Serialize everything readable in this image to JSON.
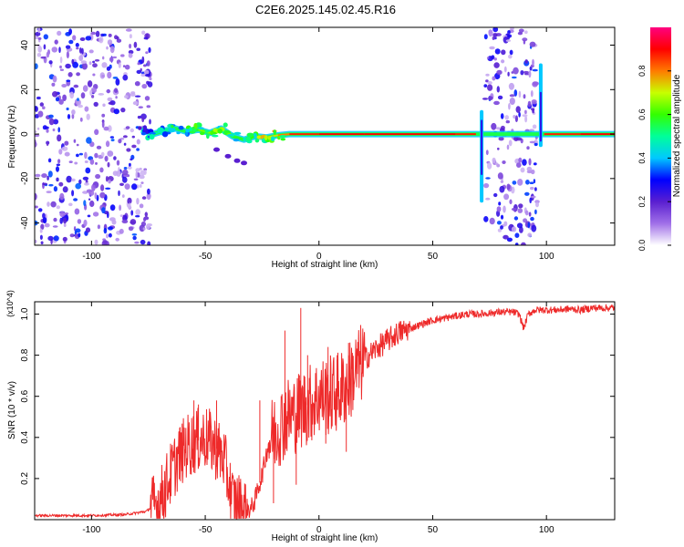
{
  "figure_title": "C2E6.2025.145.02.45.R16",
  "chart_data": [
    {
      "type": "heatmap",
      "xlabel": "Height of straight line (km)",
      "ylabel": "Frequency (Hz)",
      "xlim": [
        -125,
        130
      ],
      "ylim": [
        -50,
        48
      ],
      "x_ticks": [
        -100,
        -50,
        0,
        50,
        100
      ],
      "y_ticks": [
        -40,
        -20,
        0,
        20,
        40
      ],
      "grid": false,
      "colorbar": {
        "label": "Normalized spectral amplitude",
        "range": [
          0.0,
          1.0
        ],
        "ticks": [
          0.0,
          0.2,
          0.4,
          0.6,
          0.8
        ],
        "stops": [
          "#ffffff",
          "#a070e8",
          "#5a1fd0",
          "#0000ff",
          "#00c8ff",
          "#00ff9a",
          "#33ff00",
          "#c8ff00",
          "#ff7a00",
          "#ff0000",
          "#ff0080"
        ]
      },
      "noise_bands": [
        {
          "x": [
            -125,
            -74
          ],
          "f": [
            -50,
            48
          ]
        },
        {
          "x": [
            73,
            96
          ],
          "f": [
            -50,
            48
          ]
        }
      ],
      "signal_track": [
        {
          "x": -78,
          "f": 2.0,
          "a": 0.35
        },
        {
          "x": -73,
          "f": 0.0,
          "a": 0.45
        },
        {
          "x": -68,
          "f": 1.5,
          "a": 0.5
        },
        {
          "x": -63,
          "f": 2.5,
          "a": 0.55
        },
        {
          "x": -58,
          "f": 1.0,
          "a": 0.55
        },
        {
          "x": -53,
          "f": 2.0,
          "a": 0.6
        },
        {
          "x": -48,
          "f": 0.5,
          "a": 0.7
        },
        {
          "x": -43,
          "f": 2.5,
          "a": 0.65
        },
        {
          "x": -38,
          "f": -1.0,
          "a": 0.6
        },
        {
          "x": -33,
          "f": -2.5,
          "a": 0.55
        },
        {
          "x": -28,
          "f": -1.0,
          "a": 0.65
        },
        {
          "x": -23,
          "f": -1.5,
          "a": 0.7
        },
        {
          "x": -18,
          "f": -0.5,
          "a": 0.75
        },
        {
          "x": -13,
          "f": 0.0,
          "a": 0.85
        },
        {
          "x": 0,
          "f": 0.0,
          "a": 0.9
        },
        {
          "x": 20,
          "f": 0.0,
          "a": 0.9
        },
        {
          "x": 40,
          "f": 0.0,
          "a": 0.9
        },
        {
          "x": 60,
          "f": 0.0,
          "a": 0.9
        },
        {
          "x": 69,
          "f": 0.0,
          "a": 0.85
        },
        {
          "x": 99,
          "f": 0.0,
          "a": 0.85
        },
        {
          "x": 115,
          "f": 0.0,
          "a": 0.9
        },
        {
          "x": 130,
          "f": 0.0,
          "a": 0.9
        }
      ],
      "spurs": [
        {
          "x": 71.5,
          "f": [
            -30,
            10
          ]
        },
        {
          "x": 97.5,
          "f": [
            -5,
            31
          ]
        }
      ],
      "branch": [
        {
          "x": -45,
          "f": -7
        },
        {
          "x": -40,
          "f": -10
        },
        {
          "x": -36,
          "f": -12
        },
        {
          "x": -33,
          "f": -13
        }
      ]
    },
    {
      "type": "line",
      "xlabel": "Height of straight line (km)",
      "ylabel": "SNR (10 * v/v)",
      "y_multiplier": "(x10^4)",
      "xlim": [
        -125,
        130
      ],
      "ylim": [
        0,
        1.06
      ],
      "x_ticks": [
        -100,
        -50,
        0,
        50,
        100
      ],
      "y_ticks": [
        0.2,
        0.4,
        0.6,
        0.8,
        1.0
      ],
      "y_tick_labels": [
        "0.2",
        "0.4",
        "0.6",
        "0.8",
        "1.0"
      ],
      "grid": false,
      "series": [
        {
          "color": "#ee2a2a",
          "x": [
            -125,
            -100,
            -85,
            -76,
            -70,
            -66,
            -62,
            -58,
            -54,
            -50,
            -46,
            -42,
            -38,
            -34,
            -30,
            -28,
            -25,
            -22,
            -18,
            -14,
            -10,
            -6,
            -2,
            0,
            4,
            8,
            12,
            16,
            20,
            25,
            30,
            35,
            40,
            45,
            50,
            55,
            60,
            65,
            70,
            75,
            80,
            85,
            88,
            90,
            92,
            95,
            100,
            105,
            110,
            115,
            120,
            125,
            130
          ],
          "y": [
            0.02,
            0.02,
            0.025,
            0.04,
            0.09,
            0.2,
            0.3,
            0.36,
            0.38,
            0.4,
            0.36,
            0.3,
            0.1,
            0.06,
            0.05,
            0.1,
            0.22,
            0.38,
            0.45,
            0.5,
            0.52,
            0.55,
            0.58,
            0.6,
            0.6,
            0.62,
            0.65,
            0.72,
            0.78,
            0.83,
            0.87,
            0.91,
            0.93,
            0.95,
            0.97,
            0.98,
            0.99,
            1.0,
            1.0,
            1.005,
            1.01,
            1.01,
            1.0,
            0.93,
            1.0,
            1.02,
            1.02,
            1.02,
            1.025,
            1.02,
            1.03,
            1.03,
            1.03
          ]
        }
      ],
      "spikes": [
        {
          "x": -55,
          "y": 0.58
        },
        {
          "x": -53,
          "y": 0.56
        },
        {
          "x": -45,
          "y": 0.58
        },
        {
          "x": -26,
          "y": 0.58
        },
        {
          "x": -15,
          "y": 0.92
        },
        {
          "x": -8,
          "y": 1.03
        },
        {
          "x": -5,
          "y": 0.8
        },
        {
          "x": 4,
          "y": 0.84
        },
        {
          "x": 8,
          "y": 0.8
        },
        {
          "x": 13,
          "y": 0.86
        },
        {
          "x": 3,
          "y": 0.37
        },
        {
          "x": 12,
          "y": 0.33
        },
        {
          "x": -20,
          "y": 0.08
        },
        {
          "x": -10,
          "y": 0.17
        }
      ]
    }
  ]
}
